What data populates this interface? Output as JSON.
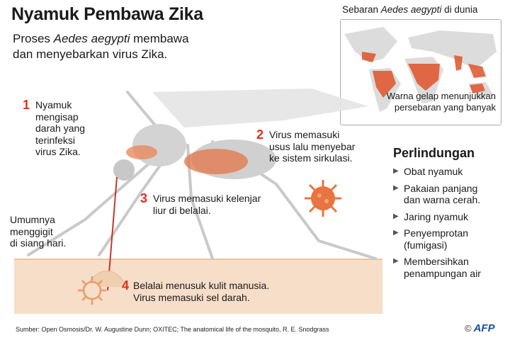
{
  "title": "Nyamuk Pembawa Zika",
  "subtitle": {
    "line1_pre": "Proses ",
    "line1_species": "Aedes aegypti",
    "line1_post": " membawa",
    "line2": "dan menyebarkan virus Zika."
  },
  "map": {
    "title_pre": "Sebaran ",
    "title_species": "Aedes aegypti",
    "title_post": " di dunia",
    "note_line1": "Warna gelap menunjukkan",
    "note_line2": "persebaran yang banyak"
  },
  "steps": [
    {
      "num": "1",
      "lines": [
        "Nyamuk",
        "mengisap",
        "darah yang",
        "terinfeksi",
        "virus Zika."
      ]
    },
    {
      "num": "2",
      "lines": [
        "Virus memasuki",
        "usus lalu menyebar",
        "ke sistem sirkulasi."
      ]
    },
    {
      "num": "3",
      "lines": [
        "Virus memasuki kelenjar",
        "liur di belalai."
      ]
    },
    {
      "num": "4",
      "lines": [
        "Belalai menusuk kulit manusia.",
        "Virus memasuki sel darah."
      ]
    }
  ],
  "bite_note": [
    "Umumnya",
    "menggigit",
    "di siang hari."
  ],
  "protection": {
    "heading": "Perlindungan",
    "items": [
      [
        "Obat nyamuk"
      ],
      [
        "Pakaian panjang",
        "dan warna cerah."
      ],
      [
        "Jaring nyamuk"
      ],
      [
        "Penyemprotan",
        "(fumigasi)"
      ],
      [
        "Membersihkan",
        "penampungan air"
      ]
    ]
  },
  "source": "Sumber: Open Osmosis/Dr. W. Augustine Dunn; OXITEC; The anatomical life of the mosquito, R. E. Snodgrass",
  "credit": {
    "symbol": "©",
    "logo": "AFP"
  },
  "colors": {
    "accent": "#e0301e",
    "virus": "#e8743f",
    "skin": "#f6dec8",
    "mosquito": "#cfcfcf",
    "logo": "#1a4fa0"
  }
}
